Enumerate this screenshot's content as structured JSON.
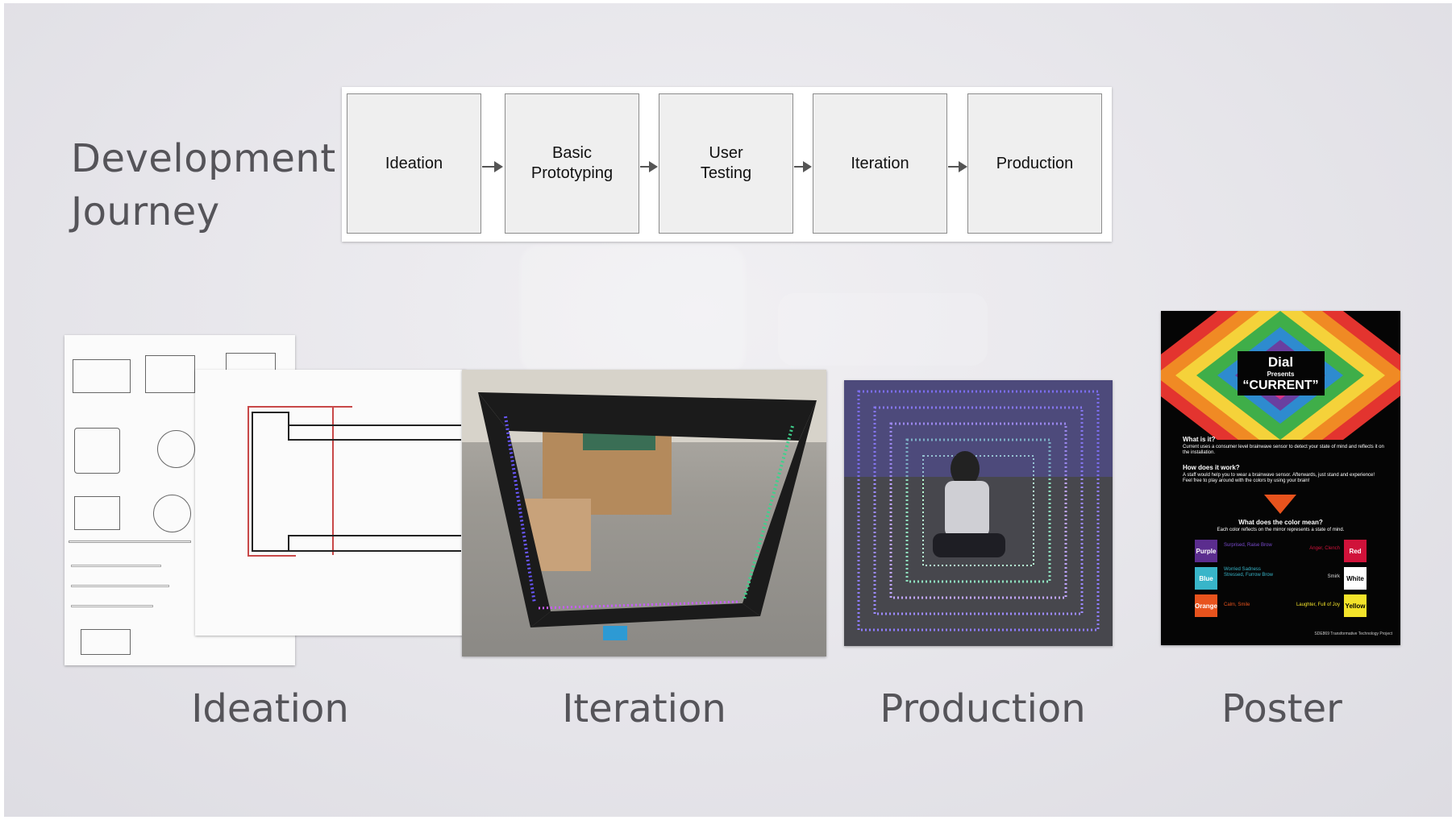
{
  "title": {
    "line1": "Development",
    "line2": "Journey"
  },
  "flow": {
    "steps": [
      "Ideation",
      "Basic\nPrototyping",
      "User\nTesting",
      "Iteration",
      "Production"
    ]
  },
  "captions": {
    "ideation": "Ideation",
    "iteration": "Iteration",
    "production": "Production",
    "poster": "Poster"
  },
  "poster": {
    "brand": "Dial",
    "presents": "Presents",
    "name": "“CURRENT”",
    "q1": "What is it?",
    "a1": "Current uses a consumer level brainwave sensor to detect your state of mind and reflects it on the installation.",
    "q2": "How does it work?",
    "a2": "A staff would help you to wear a brainwave sensor. Afterwards, just stand and experience! Feel free to play around with the colors by using your brain!",
    "q3": "What does the color mean?",
    "a3": "Each color reflects on the mirror represents a state of mind.",
    "colors": [
      {
        "name": "Purple",
        "meaning": "Surprised, Raise Brow",
        "hex": "#5b2d8e",
        "side": "left"
      },
      {
        "name": "Red",
        "meaning": "Anger, Clench",
        "hex": "#d0123a",
        "side": "right"
      },
      {
        "name": "Blue",
        "meaning": "Worried Sadness Stressed, Furrow Brow",
        "hex": "#38b5c9",
        "side": "left"
      },
      {
        "name": "White",
        "meaning": "Smirk",
        "hex": "#ffffff",
        "side": "right"
      },
      {
        "name": "Orange",
        "meaning": "Calm, Smile",
        "hex": "#e8531d",
        "side": "left"
      },
      {
        "name": "Yellow",
        "meaning": "Laughter, Full of Joy",
        "hex": "#f3e32a",
        "side": "right"
      }
    ],
    "footer": "SDE869 Transformative Technology Project",
    "diamond_colors": [
      "#e3342f",
      "#f08a24",
      "#f5d23a",
      "#3fae49",
      "#2e8bcf",
      "#6a3fa0",
      "#d63384"
    ]
  }
}
